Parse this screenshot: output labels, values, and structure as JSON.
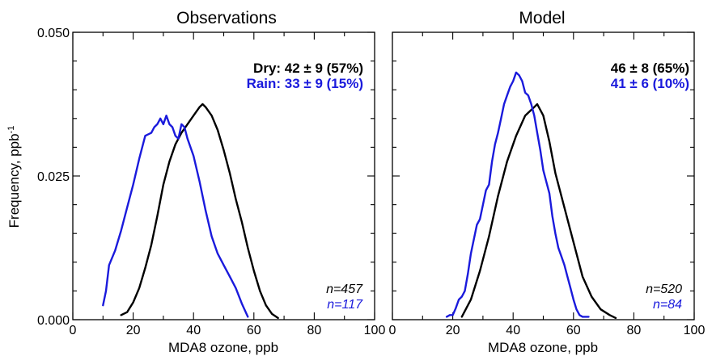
{
  "figure": {
    "ylabel": "Frequency, ppb",
    "ylabel_sup": "-1",
    "yticks": [
      "0.000",
      "0.025",
      "0.050"
    ],
    "xticks": [
      "0",
      "20",
      "40",
      "60",
      "80",
      "100"
    ]
  },
  "chart_data": [
    {
      "type": "line",
      "title": "Observations",
      "xlabel": "MDA8 ozone, ppb",
      "xlim": [
        0,
        100
      ],
      "ylim": [
        0,
        0.05
      ],
      "grid": false,
      "legend_placement": "top-right",
      "legend": [
        {
          "label": "Dry: 42 ± 9 (57%)",
          "color": "#000000"
        },
        {
          "label": "Rain: 33 ± 9 (15%)",
          "color": "#1a1adc"
        }
      ],
      "counts": [
        {
          "label": "n=457",
          "color": "#000000"
        },
        {
          "label": "n=117",
          "color": "#1a1adc"
        }
      ],
      "series": [
        {
          "color": "#000000",
          "x": [
            16,
            18,
            20,
            22,
            24,
            26,
            28,
            30,
            32,
            34,
            36,
            38,
            40,
            42,
            43,
            44,
            46,
            48,
            50,
            52,
            54,
            56,
            58,
            60,
            62,
            64,
            66,
            68
          ],
          "y": [
            0.0008,
            0.0013,
            0.003,
            0.0055,
            0.009,
            0.013,
            0.018,
            0.0235,
            0.0275,
            0.0305,
            0.0325,
            0.034,
            0.0355,
            0.037,
            0.0375,
            0.037,
            0.0355,
            0.033,
            0.0295,
            0.0255,
            0.021,
            0.017,
            0.0125,
            0.0085,
            0.005,
            0.0025,
            0.001,
            0.0003
          ]
        },
        {
          "color": "#1a1adc",
          "x": [
            10,
            11,
            12,
            14,
            16,
            18,
            20,
            22,
            24,
            26,
            27,
            28,
            29,
            30,
            31,
            32,
            33,
            34,
            35,
            36,
            37,
            38,
            40,
            42,
            44,
            46,
            48,
            50,
            52,
            54,
            56,
            58
          ],
          "y": [
            0.0025,
            0.005,
            0.0095,
            0.012,
            0.0155,
            0.0195,
            0.0235,
            0.028,
            0.032,
            0.0325,
            0.0335,
            0.034,
            0.035,
            0.034,
            0.0355,
            0.034,
            0.0335,
            0.032,
            0.0315,
            0.034,
            0.0335,
            0.0315,
            0.0285,
            0.024,
            0.019,
            0.0145,
            0.0115,
            0.0095,
            0.0075,
            0.0055,
            0.0028,
            0.0005
          ]
        }
      ]
    },
    {
      "type": "line",
      "title": "Model",
      "xlabel": "MDA8 ozone, ppb",
      "xlim": [
        0,
        100
      ],
      "ylim": [
        0,
        0.05
      ],
      "grid": false,
      "legend_placement": "top-right",
      "legend": [
        {
          "label": "46 ± 8 (65%)",
          "color": "#000000"
        },
        {
          "label": "41 ± 6 (10%)",
          "color": "#1a1adc"
        }
      ],
      "counts": [
        {
          "label": "n=520",
          "color": "#000000"
        },
        {
          "label": "n=84",
          "color": "#1a1adc"
        }
      ],
      "series": [
        {
          "color": "#000000",
          "x": [
            23,
            26,
            29,
            32,
            35,
            38,
            41,
            44,
            47,
            48,
            50,
            52,
            54,
            57,
            60,
            63,
            66,
            69,
            72,
            74
          ],
          "y": [
            0.0005,
            0.0035,
            0.0085,
            0.0145,
            0.0215,
            0.0275,
            0.032,
            0.0355,
            0.037,
            0.0375,
            0.0355,
            0.031,
            0.0255,
            0.0195,
            0.0135,
            0.0075,
            0.004,
            0.0018,
            0.0008,
            0.0003
          ]
        },
        {
          "color": "#1a1adc",
          "x": [
            18,
            19,
            20,
            21,
            22,
            23,
            24,
            25,
            26,
            27,
            28,
            29,
            30,
            31,
            32,
            33,
            34,
            35,
            36,
            37,
            38,
            39,
            40,
            41,
            42,
            43,
            44,
            45,
            46,
            47,
            48,
            49,
            50,
            51,
            52,
            53,
            54,
            55,
            56,
            57,
            58,
            59,
            60,
            61,
            62,
            63,
            64,
            65
          ],
          "y": [
            0.0005,
            0.0008,
            0.0008,
            0.002,
            0.0035,
            0.004,
            0.005,
            0.008,
            0.0115,
            0.014,
            0.0165,
            0.0175,
            0.02,
            0.0225,
            0.0235,
            0.0275,
            0.0305,
            0.0325,
            0.035,
            0.0375,
            0.039,
            0.0405,
            0.0415,
            0.043,
            0.0425,
            0.0415,
            0.0395,
            0.039,
            0.0375,
            0.0355,
            0.0325,
            0.0295,
            0.026,
            0.024,
            0.022,
            0.018,
            0.015,
            0.0125,
            0.011,
            0.0095,
            0.0075,
            0.0055,
            0.0035,
            0.0018,
            0.0008,
            0.0005,
            0.0005,
            0.0005
          ]
        }
      ]
    }
  ]
}
